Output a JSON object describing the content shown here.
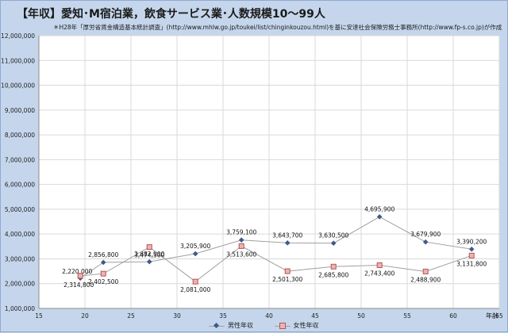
{
  "title": "【年収】愛知･M宿泊業，飲食サービス業･人数規模10～99人",
  "subtitle": "＊H28年「厚労省賃金構造基本統計調査」(http://www.mhlw.go.jp/toukei/list/chinginkouzou.html)を基に安達社会保険労務士事務所(http://www.fp-s.co.jp)が作成",
  "colors": {
    "male": "#3f5a87",
    "female": "#c0504d",
    "female_fill": "#e6b6b6",
    "line": "#a0a0a0"
  },
  "chart_data": {
    "type": "line",
    "xlabel": "年齢",
    "ylabel": "",
    "xlim": [
      15,
      65
    ],
    "ylim": [
      1000000,
      12000000
    ],
    "x_ticks": [
      "15",
      "20",
      "25",
      "30",
      "35",
      "40",
      "45",
      "50",
      "55",
      "60",
      "65"
    ],
    "y_ticks": [
      "1,000,000",
      "2,000,000",
      "3,000,000",
      "4,000,000",
      "5,000,000",
      "6,000,000",
      "7,000,000",
      "8,000,000",
      "9,000,000",
      "10,000,000",
      "11,000,000",
      "12,000,000"
    ],
    "grid": true,
    "legend": "bottom",
    "series": [
      {
        "name": "男性年収",
        "x": [
          19.5,
          22,
          27,
          32,
          37,
          42,
          47,
          52,
          57,
          62
        ],
        "values": [
          2220000,
          2856800,
          2882900,
          3205900,
          3759100,
          3643700,
          3630500,
          4695900,
          3679900,
          3390200
        ],
        "labels": [
          "2,220,000",
          "2,856,800",
          "2,882,900",
          "3,205,900",
          "3,759,100",
          "3,643,700",
          "3,630,500",
          "4,695,900",
          "3,679,900",
          "3,390,200"
        ]
      },
      {
        "name": "女性年収",
        "x": [
          19.5,
          22,
          27,
          32,
          37,
          42,
          47,
          52,
          57,
          62
        ],
        "values": [
          2314800,
          2402500,
          3474500,
          2081000,
          3513600,
          2501300,
          2685800,
          2743400,
          2488900,
          3131800
        ],
        "labels": [
          "2,314,800",
          "2,402,500",
          "3,474,500",
          "2,081,000",
          "3,513,600",
          "2,501,300",
          "2,685,800",
          "2,743,400",
          "2,488,900",
          "3,131,800"
        ]
      }
    ]
  }
}
